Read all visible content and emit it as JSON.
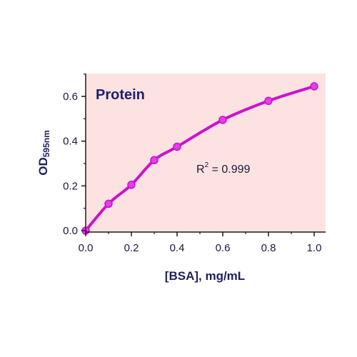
{
  "chart_data": {
    "type": "scatter",
    "title": "Protein",
    "xlabel": "[BSA], mg/mL",
    "ylabel": {
      "main": "OD",
      "sub": "595nm"
    },
    "annotation": {
      "main": "R",
      "sup": "2",
      "rest": " = 0.999"
    },
    "xlim": [
      0,
      1.0
    ],
    "ylim": [
      0,
      0.7
    ],
    "xticks": [
      0.0,
      0.2,
      0.4,
      0.6,
      0.8,
      1.0
    ],
    "xtick_labels": [
      "0.0",
      "0.2",
      "0.4",
      "0.6",
      "0.8",
      "1.0"
    ],
    "yticks": [
      0.0,
      0.2,
      0.4,
      0.6
    ],
    "ytick_labels": [
      "0.0",
      "0.2",
      "0.4",
      "0.6"
    ],
    "grid": false,
    "series": [
      {
        "x": [
          0.0,
          0.1,
          0.2,
          0.3,
          0.4,
          0.6,
          0.8,
          1.0
        ],
        "y": [
          0.0,
          0.12,
          0.205,
          0.315,
          0.375,
          0.495,
          0.58,
          0.645
        ],
        "fit": "smooth curve"
      }
    ],
    "colors": {
      "background": "#fde2e2",
      "series": "#cc11cc",
      "marker": "#e040e8",
      "axis": "#1a1a1a"
    }
  }
}
